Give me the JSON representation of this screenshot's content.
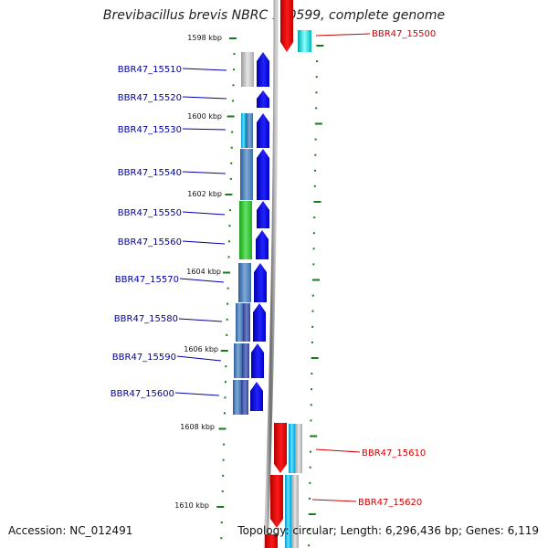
{
  "title": "Brevibacillus brevis NBRC 100599, complete genome",
  "footer": {
    "accession": "Accession: NC_012491",
    "stats": "Topology: circular; Length: 6,296,436 bp; Genes: 6,119"
  },
  "kbp_labels": [
    "1598 kbp",
    "1600 kbp",
    "1602 kbp",
    "1604 kbp",
    "1606 kbp",
    "1608 kbp",
    "1610 kbp"
  ],
  "genes": [
    {
      "id": "BBR47_15500",
      "color": "#d00000"
    },
    {
      "id": "BBR47_15510",
      "color": "#0000aa"
    },
    {
      "id": "BBR47_15520",
      "color": "#0000aa"
    },
    {
      "id": "BBR47_15530",
      "color": "#0000aa"
    },
    {
      "id": "BBR47_15540",
      "color": "#0000aa"
    },
    {
      "id": "BBR47_15550",
      "color": "#0000aa"
    },
    {
      "id": "BBR47_15560",
      "color": "#0000aa"
    },
    {
      "id": "BBR47_15570",
      "color": "#0000aa"
    },
    {
      "id": "BBR47_15580",
      "color": "#0000aa"
    },
    {
      "id": "BBR47_15590",
      "color": "#0000aa"
    },
    {
      "id": "BBR47_15600",
      "color": "#0000aa"
    },
    {
      "id": "BBR47_15610",
      "color": "#d00000"
    },
    {
      "id": "BBR47_15620",
      "color": "#d00000"
    }
  ],
  "colors": {
    "minus_strand": "#0000ee",
    "plus_strand": "#ee0000",
    "tick": "#1a7a1a",
    "axis": "#888888"
  }
}
